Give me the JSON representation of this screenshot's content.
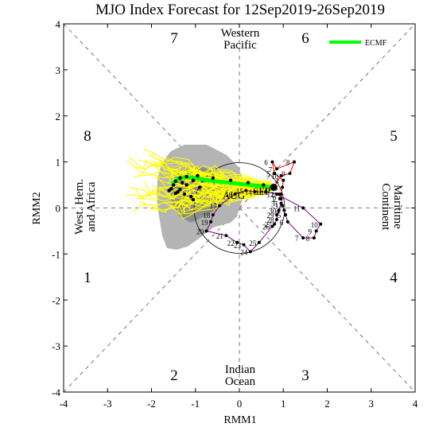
{
  "chart_data": {
    "type": "scatter",
    "title": "MJO Index Forecast for 12Sep2019-26Sep2019",
    "xlabel": "RMM1",
    "ylabel": "RMM2",
    "xlim": [
      -4,
      4
    ],
    "ylim": [
      -4,
      4
    ],
    "xticks": [
      "-4",
      "-3",
      "-2",
      "-1",
      "0",
      "1",
      "2",
      "3",
      "4"
    ],
    "yticks": [
      "-4",
      "-3",
      "-2",
      "-1",
      "0",
      "1",
      "2",
      "3",
      "4"
    ],
    "legend": {
      "position": "top-right",
      "label": "ECMF"
    },
    "phase_numbers": [
      "1",
      "2",
      "3",
      "4",
      "5",
      "6",
      "7",
      "8"
    ],
    "regions": {
      "top": [
        "Western",
        "Pacific"
      ],
      "bottom": [
        "Indian",
        "Ocean"
      ],
      "left": [
        "West. Hem.",
        "and Africa"
      ],
      "right": [
        "Maritime",
        "Continent"
      ]
    },
    "month_labels": [
      "AUG",
      "SEP"
    ],
    "colors": {
      "ensemble": "#ffff00",
      "ensemble_mean": "#00ff00",
      "spread": "#b4b4b4",
      "spread_inner": "#8c8c8c",
      "aug_track": "#800080",
      "sep_track": "#ff0000",
      "forecast_dots": "#000000"
    },
    "observed_aug": {
      "labels": [
        "1",
        "2",
        "3",
        "4",
        "5",
        "6",
        "7",
        "8",
        "9",
        "10",
        "11",
        "12",
        "13",
        "14",
        "15",
        "16",
        "17",
        "18",
        "19",
        "20",
        "21",
        "22",
        "23",
        "24",
        "25",
        "26",
        "27",
        "28",
        "29",
        "30",
        "31"
      ],
      "x": [
        0.9,
        0.95,
        0.98,
        1.02,
        1.05,
        1.1,
        1.45,
        1.7,
        1.75,
        1.85,
        1.45,
        0.85,
        0.6,
        0.35,
        0.15,
        -0.1,
        -0.45,
        -0.6,
        -0.65,
        -0.75,
        -0.3,
        -0.05,
        0.1,
        0.25,
        0.45,
        0.75,
        0.8,
        0.85,
        0.85,
        0.9,
        0.95
      ],
      "y": [
        0.3,
        0.2,
        0.05,
        -0.05,
        -0.15,
        -0.3,
        -0.65,
        -0.65,
        -0.5,
        -0.35,
        0.0,
        0.3,
        0.35,
        0.35,
        0.38,
        0.3,
        0.05,
        -0.15,
        -0.3,
        -0.5,
        -0.6,
        -0.75,
        -0.8,
        -0.95,
        -0.75,
        -0.4,
        -0.35,
        -0.25,
        -0.15,
        -0.05,
        0.1
      ]
    },
    "observed_sep": {
      "labels": [
        "1",
        "2",
        "3",
        "4",
        "5",
        "6",
        "7",
        "8",
        "9",
        "10",
        "11"
      ],
      "x": [
        0.92,
        0.95,
        0.98,
        1.0,
        0.8,
        0.75,
        0.85,
        1.25,
        1.15,
        0.95,
        0.78
      ],
      "y": [
        0.2,
        0.3,
        0.45,
        0.6,
        0.75,
        1.0,
        0.85,
        1.0,
        0.75,
        0.7,
        0.45
      ]
    },
    "ensemble_mean": {
      "x": [
        0.78,
        0.25,
        -0.25,
        -0.7,
        -1.0,
        -1.2,
        -1.35,
        -1.45,
        -1.5,
        -1.5
      ],
      "y": [
        0.45,
        0.5,
        0.55,
        0.6,
        0.65,
        0.67,
        0.65,
        0.6,
        0.55,
        0.5
      ]
    },
    "forecast_dots": {
      "x": [
        0.78,
        0.55,
        0.2,
        -0.2,
        -0.6,
        -0.95,
        -1.2,
        -1.35,
        -1.45,
        -1.5,
        -1.55,
        -1.4,
        -1.25,
        -1.1,
        -1.05,
        -1.2,
        -1.35,
        -1.45,
        -1.05,
        -0.9,
        -1.3,
        -1.6
      ],
      "y": [
        0.45,
        0.5,
        0.55,
        0.6,
        0.65,
        0.7,
        0.68,
        0.65,
        0.58,
        0.5,
        0.42,
        0.35,
        0.3,
        0.25,
        0.6,
        0.5,
        0.4,
        0.32,
        0.18,
        0.45,
        0.55,
        0.38
      ]
    }
  }
}
